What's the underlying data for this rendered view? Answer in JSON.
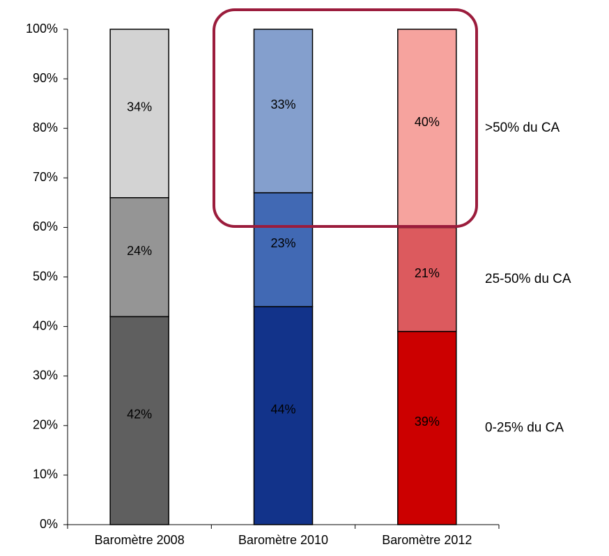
{
  "chart_data": {
    "type": "stacked_bar",
    "categories": [
      "Baromètre 2008",
      "Baromètre 2010",
      "Baromètre 2012"
    ],
    "series": [
      {
        "name": "0-25% du CA",
        "colors": [
          "#5f5f5f",
          "#12338a",
          "#cc0000"
        ],
        "values": [
          42,
          44,
          39
        ],
        "value_labels": [
          "42%",
          "44%",
          "39%"
        ]
      },
      {
        "name": "25-50% du CA",
        "colors": [
          "#959595",
          "#4169b4",
          "#dc5a5e"
        ],
        "values": [
          24,
          23,
          21
        ],
        "value_labels": [
          "24%",
          "23%",
          "21%"
        ]
      },
      {
        "name": ">50% du CA",
        "colors": [
          "#d3d3d3",
          "#849fcd",
          "#f6a39e"
        ],
        "values": [
          34,
          33,
          40
        ],
        "value_labels": [
          "34%",
          "33%",
          "40%"
        ]
      }
    ],
    "legend_color": "#1f3c8c",
    "ylim": [
      0,
      100
    ],
    "yticks": [
      {
        "value": 0,
        "label": "0%"
      },
      {
        "value": 10,
        "label": "10%"
      },
      {
        "value": 20,
        "label": "20%"
      },
      {
        "value": 30,
        "label": "30%"
      },
      {
        "value": 40,
        "label": "40%"
      },
      {
        "value": 50,
        "label": "50%"
      },
      {
        "value": 60,
        "label": "60%"
      },
      {
        "value": 70,
        "label": "70%"
      },
      {
        "value": 80,
        "label": "80%"
      },
      {
        "value": 90,
        "label": "90%"
      },
      {
        "value": 100,
        "label": "100%"
      }
    ]
  }
}
